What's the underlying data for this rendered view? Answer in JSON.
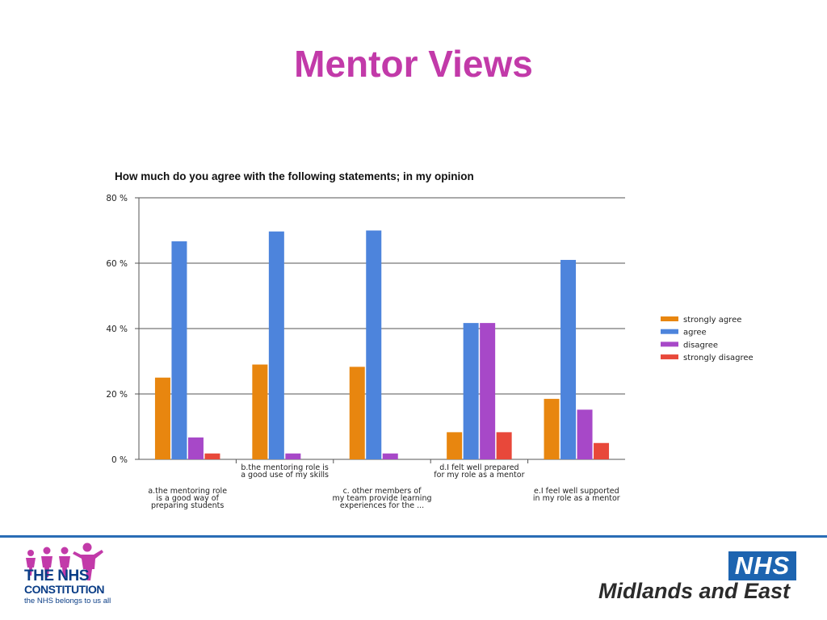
{
  "slide": {
    "title": "Mentor Views"
  },
  "chart_data": {
    "type": "bar",
    "title": "How much do you agree with the following statements; in my opinion",
    "xlabel": "",
    "ylabel": "",
    "ylim": [
      0,
      80
    ],
    "yticks": [
      0,
      20,
      40,
      60,
      80
    ],
    "ytick_labels": [
      "0 %",
      "20 %",
      "40 %",
      "60 %",
      "80 %"
    ],
    "grid": true,
    "legend_position": "right",
    "categories": [
      [
        "a.the mentoring role",
        "is a good way of",
        "preparing students"
      ],
      [
        "b.the  mentoring role is",
        "a good use of my skills"
      ],
      [
        "c.     other members of",
        "my team provide learning",
        "experiences for the ..."
      ],
      [
        "d.I felt well prepared",
        "for my role as a mentor"
      ],
      [
        "e.I feel well supported",
        "in my role as a mentor"
      ]
    ],
    "series": [
      {
        "name": "strongly agree",
        "color": "#e8860f",
        "values": [
          25,
          29,
          28.3,
          8.3,
          18.5
        ]
      },
      {
        "name": "agree",
        "color": "#4d84dc",
        "values": [
          66.7,
          69.7,
          70,
          41.7,
          61
        ]
      },
      {
        "name": "disagree",
        "color": "#a748c8",
        "values": [
          6.7,
          1.8,
          1.8,
          41.7,
          15.2
        ]
      },
      {
        "name": "strongly disagree",
        "color": "#e8483a",
        "values": [
          1.8,
          0,
          0,
          8.3,
          5
        ]
      }
    ]
  },
  "footer": {
    "constitution_line1": "THE NHS",
    "constitution_line2": "CONSTITUTION",
    "constitution_tagline": "the NHS belongs to us all",
    "nhs_logo": "NHS",
    "region": "Midlands and East",
    "colors": {
      "rule": "#2a6db5",
      "people_icon": "#c23aa9",
      "nhs_blue": "#1d64b0"
    }
  }
}
